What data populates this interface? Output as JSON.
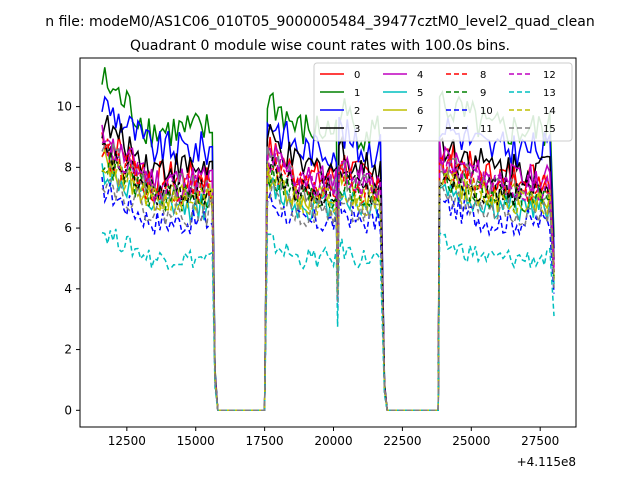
{
  "chart_data": {
    "type": "line",
    "suptitle": "n file: modeM0/AS1C06_010T05_9000005484_39477cztM0_level2_quad_clean",
    "title": "Quadrant 0 module wise count rates with 100.0s bins.",
    "xlabel": "",
    "ylabel": "",
    "offset_label": "+4.115e8",
    "xlim": [
      10800,
      28800
    ],
    "ylim": [
      -0.55,
      11.6
    ],
    "xticks": [
      12500,
      15000,
      17500,
      20000,
      22500,
      25000,
      27500
    ],
    "yticks": [
      0,
      2,
      4,
      6,
      8,
      10
    ],
    "grid": false,
    "legend_location": "top-right",
    "segments": [
      {
        "x_start": 11600,
        "x_end": 15600
      },
      {
        "x_start": 17600,
        "x_end": 20100
      },
      {
        "x_start": 20100,
        "x_end": 21750
      },
      {
        "x_start": 23850,
        "x_end": 28000
      }
    ],
    "gaps": [
      {
        "x_start": 15800,
        "x_end": 17500
      },
      {
        "x_start": 21950,
        "x_end": 23800
      }
    ],
    "series": [
      {
        "name": "0",
        "color": "#ff0000",
        "dash": "solid",
        "level": 7.7
      },
      {
        "name": "1",
        "color": "#008000",
        "dash": "solid",
        "level": 9.2
      },
      {
        "name": "2",
        "color": "#0000ff",
        "dash": "solid",
        "level": 8.6
      },
      {
        "name": "3",
        "color": "#000000",
        "dash": "solid",
        "level": 8.0
      },
      {
        "name": "4",
        "color": "#bf00bf",
        "dash": "solid",
        "level": 7.6
      },
      {
        "name": "5",
        "color": "#00bfbf",
        "dash": "solid",
        "level": 6.7
      },
      {
        "name": "6",
        "color": "#bfbf00",
        "dash": "solid",
        "level": 7.0
      },
      {
        "name": "7",
        "color": "#808080",
        "dash": "solid",
        "level": 7.3
      },
      {
        "name": "8",
        "color": "#ff0000",
        "dash": "dashed",
        "level": 7.3
      },
      {
        "name": "9",
        "color": "#008000",
        "dash": "dashed",
        "level": 7.0
      },
      {
        "name": "10",
        "color": "#0000ff",
        "dash": "dashed",
        "level": 6.2
      },
      {
        "name": "11",
        "color": "#000000",
        "dash": "dashed",
        "level": 7.2
      },
      {
        "name": "12",
        "color": "#bf00bf",
        "dash": "dashed",
        "level": 7.4
      },
      {
        "name": "13",
        "color": "#00bfbf",
        "dash": "dashed",
        "level": 5.0
      },
      {
        "name": "14",
        "color": "#bfbf00",
        "dash": "dashed",
        "level": 6.9
      },
      {
        "name": "15",
        "color": "#808080",
        "dash": "dashed",
        "level": 6.5
      }
    ]
  }
}
